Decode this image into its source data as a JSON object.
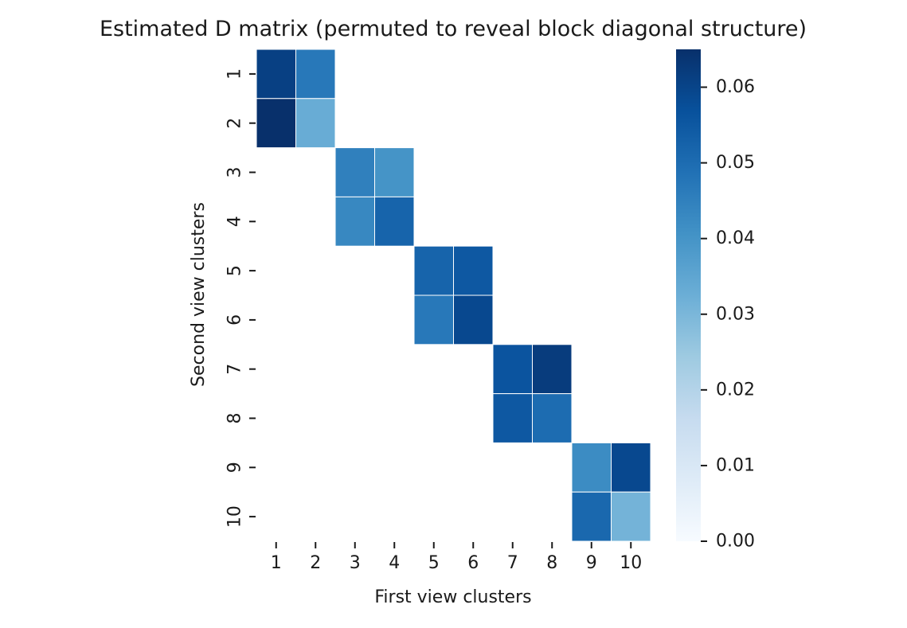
{
  "chart_data": {
    "type": "heatmap",
    "title": "Estimated D matrix (permuted to reveal block diagonal structure)",
    "xlabel": "First view clusters",
    "ylabel": "Second view clusters",
    "x_tick_labels": [
      "1",
      "2",
      "3",
      "4",
      "5",
      "6",
      "7",
      "8",
      "9",
      "10"
    ],
    "y_tick_labels": [
      "1",
      "2",
      "3",
      "4",
      "5",
      "6",
      "7",
      "8",
      "9",
      "10"
    ],
    "colormap": "Blues",
    "color_range": [
      0,
      0.065
    ],
    "colorbar_ticks": [
      "0.00",
      "0.01",
      "0.02",
      "0.03",
      "0.04",
      "0.05",
      "0.06"
    ],
    "colorbar_tick_values": [
      0,
      0.01,
      0.02,
      0.03,
      0.04,
      0.05,
      0.06
    ],
    "values": [
      [
        0.061,
        0.047,
        null,
        null,
        null,
        null,
        null,
        null,
        null,
        null
      ],
      [
        0.065,
        0.033,
        null,
        null,
        null,
        null,
        null,
        null,
        null,
        null
      ],
      [
        null,
        null,
        0.045,
        0.04,
        null,
        null,
        null,
        null,
        null,
        null
      ],
      [
        null,
        null,
        0.043,
        0.052,
        null,
        null,
        null,
        null,
        null,
        null
      ],
      [
        null,
        null,
        null,
        null,
        0.052,
        0.055,
        null,
        null,
        null,
        null
      ],
      [
        null,
        null,
        null,
        null,
        0.047,
        0.059,
        null,
        null,
        null,
        null
      ],
      [
        null,
        null,
        null,
        null,
        null,
        null,
        0.056,
        0.062,
        null,
        null
      ],
      [
        null,
        null,
        null,
        null,
        null,
        null,
        0.055,
        0.05,
        null,
        null
      ],
      [
        null,
        null,
        null,
        null,
        null,
        null,
        null,
        null,
        0.042,
        0.059
      ],
      [
        null,
        null,
        null,
        null,
        null,
        null,
        null,
        null,
        0.051,
        0.031
      ]
    ],
    "grid": false,
    "cell_border_color": "#ffffff"
  }
}
